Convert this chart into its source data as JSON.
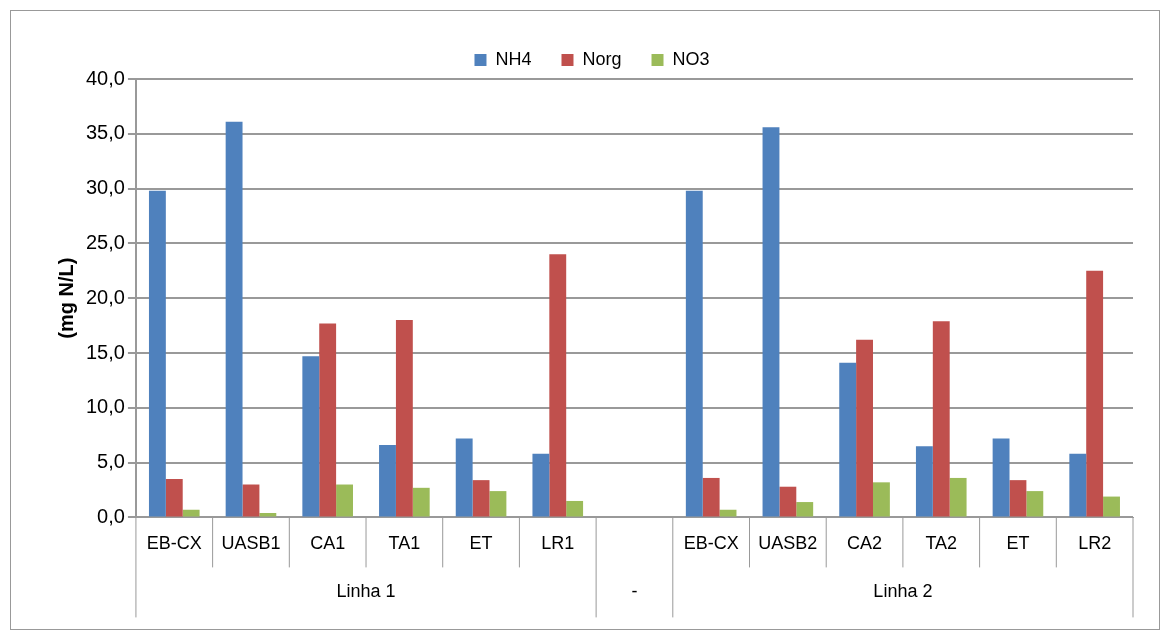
{
  "chart_data": {
    "type": "bar",
    "ylabel": "(mg N/L)",
    "categories": [
      "EB-CX",
      "UASB1",
      "CA1",
      "TA1",
      "ET",
      "LR1",
      null,
      "EB-CX",
      "UASB2",
      "CA2",
      "TA2",
      "ET",
      "LR2"
    ],
    "series": [
      {
        "name": "NH4",
        "color": "#4f81bd",
        "values": [
          29.8,
          36.1,
          14.7,
          6.6,
          7.2,
          5.8,
          null,
          29.8,
          35.6,
          14.1,
          6.5,
          7.2,
          5.8
        ]
      },
      {
        "name": "Norg",
        "color": "#c0504d",
        "values": [
          3.5,
          3.0,
          17.7,
          18.0,
          3.4,
          24.0,
          null,
          3.6,
          2.8,
          16.2,
          17.9,
          3.4,
          22.5
        ]
      },
      {
        "name": "NO3",
        "color": "#9bbb59",
        "values": [
          0.7,
          0.4,
          3.0,
          2.7,
          2.4,
          1.5,
          null,
          0.7,
          1.4,
          3.2,
          3.6,
          2.4,
          1.9
        ]
      }
    ],
    "ylim": [
      0,
      40
    ],
    "yticks": [
      {
        "value": 0,
        "label": "0,0"
      },
      {
        "value": 5,
        "label": "5,0"
      },
      {
        "value": 10,
        "label": "10,0"
      },
      {
        "value": 15,
        "label": "15,0"
      },
      {
        "value": 20,
        "label": "20,0"
      },
      {
        "value": 25,
        "label": "25,0"
      },
      {
        "value": 30,
        "label": "30,0"
      },
      {
        "value": 35,
        "label": "35,0"
      },
      {
        "value": 40,
        "label": "40,0"
      }
    ],
    "annotations": [
      "Linha 1",
      "-",
      "Linha 2"
    ],
    "grid": "y",
    "legend": "top"
  }
}
